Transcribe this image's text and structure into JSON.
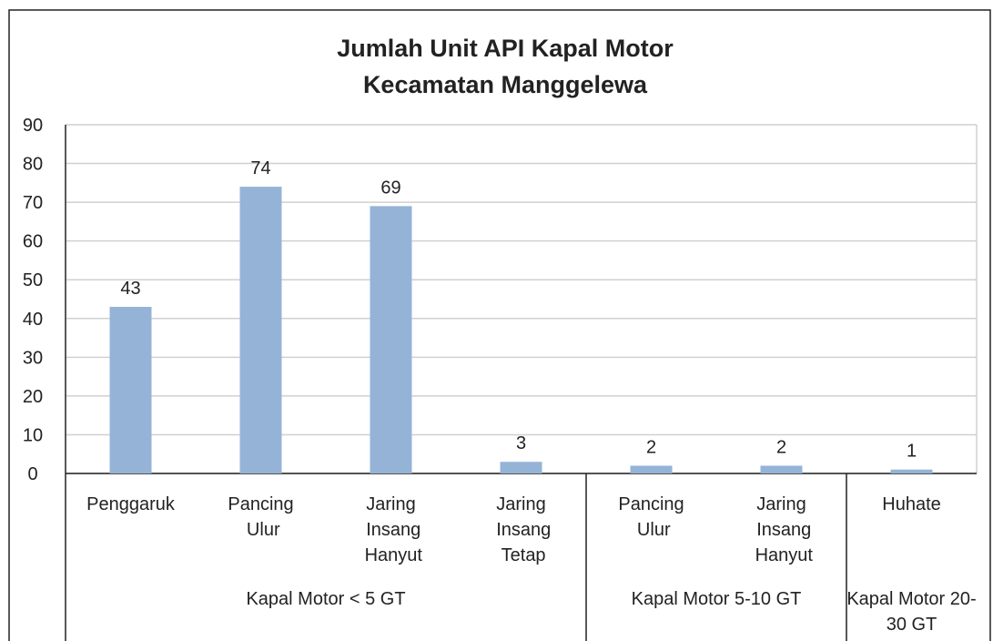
{
  "chart_data": {
    "type": "bar",
    "title": [
      "Jumlah Unit API Kapal Motor",
      "Kecamatan Manggelewa"
    ],
    "groups": [
      {
        "name": "Kapal Motor < 5 GT",
        "categories": [
          "Penggaruk",
          "Pancing Ulur",
          "Jaring Insang Hanyut",
          "Jaring Insang Tetap"
        ],
        "values": [
          43,
          74,
          69,
          3
        ]
      },
      {
        "name": "Kapal Motor 5-10 GT",
        "categories": [
          "Pancing Ulur",
          "Jaring Insang Hanyut"
        ],
        "values": [
          2,
          2
        ]
      },
      {
        "name": "Kapal Motor 20-30 GT",
        "categories": [
          "Huhate"
        ],
        "values": [
          1
        ]
      }
    ],
    "color": "#95b3d7",
    "ylim": [
      0,
      90
    ],
    "yticks": [
      0,
      10,
      20,
      30,
      40,
      50,
      60,
      70,
      80,
      90
    ],
    "grid": true
  }
}
